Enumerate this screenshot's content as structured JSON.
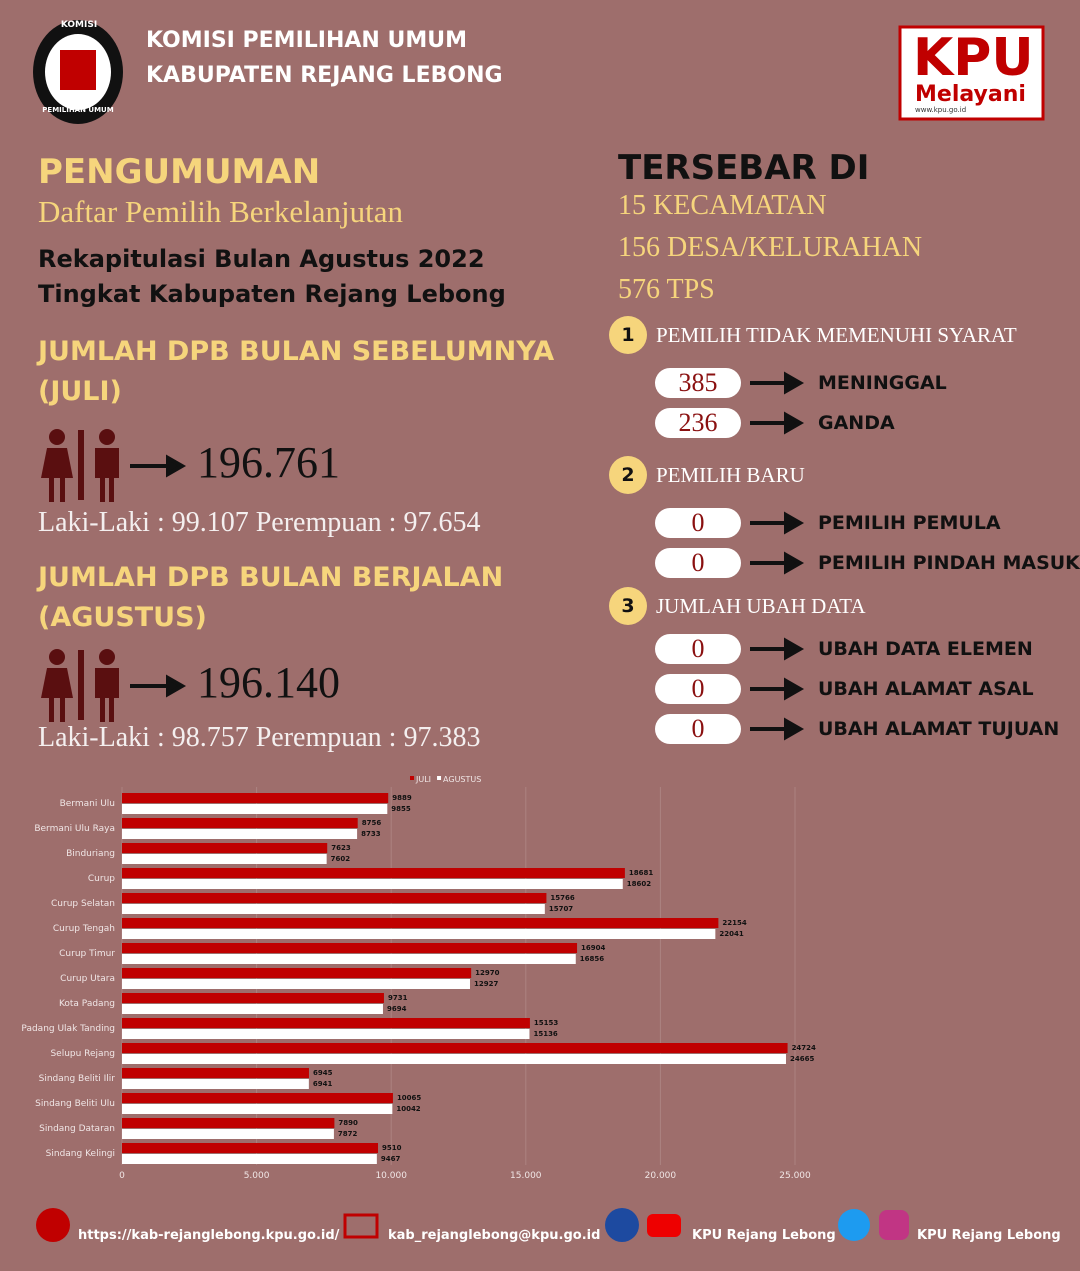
{
  "header": {
    "org_line1": "KOMISI PEMILIHAN UMUM",
    "org_line2": "KABUPATEN REJANG LEBONG",
    "logo_top": "KOMISI",
    "logo_bottom": "PEMILIHAN UMUM",
    "badge_title": "KPU",
    "badge_subtitle": "Melayani",
    "badge_url": "www.kpu.go.id"
  },
  "announcement": {
    "title": "PENGUMUMAN",
    "subtitle": "Daftar Pemilih Berkelanjutan",
    "description": "Rekapitulasi Bulan Agustus 2022 Tingkat Kabupaten Rejang Lebong"
  },
  "previous": {
    "heading": "JUMLAH DPB BULAN SEBELUMNYA (JULI)",
    "total": "196.761",
    "breakdown": "Laki-Laki : 99.107 Perempuan : 97.654"
  },
  "current": {
    "heading": "JUMLAH DPB BULAN BERJALAN (AGUSTUS)",
    "total": "196.140",
    "breakdown": "Laki-Laki : 98.757 Perempuan : 97.383"
  },
  "spread": {
    "heading": "TERSEBAR DI",
    "items": [
      "15 KECAMATAN",
      "156 DESA/KELURAHAN",
      "576 TPS"
    ]
  },
  "sections": [
    {
      "number": 1,
      "title": "PEMILIH TIDAK MEMENUHI SYARAT",
      "items": [
        {
          "value": 385,
          "label": "MENINGGAL"
        },
        {
          "value": 236,
          "label": "GANDA"
        }
      ]
    },
    {
      "number": 2,
      "title": "PEMILIH BARU",
      "items": [
        {
          "value": 0,
          "label": "PEMILIH PEMULA"
        },
        {
          "value": 0,
          "label": "PEMILIH PINDAH MASUK"
        }
      ]
    },
    {
      "number": 3,
      "title": "JUMLAH UBAH DATA",
      "items": [
        {
          "value": 0,
          "label": "UBAH DATA ELEMEN"
        },
        {
          "value": 0,
          "label": "UBAH ALAMAT ASAL"
        },
        {
          "value": 0,
          "label": "UBAH ALAMAT TUJUAN"
        }
      ]
    }
  ],
  "chart_data": {
    "type": "hbar",
    "categories": [
      "Bermani Ulu",
      "Bermani Ulu Raya",
      "Binduriang",
      "Curup",
      "Curup Selatan",
      "Curup Tengah",
      "Curup Timur",
      "Curup Utara",
      "Kota Padang",
      "Padang Ulak Tanding",
      "Selupu Rejang",
      "Sindang Beliti Ilir",
      "Sindang Beliti Ulu",
      "Sindang Dataran",
      "Sindang Kelingi"
    ],
    "series": [
      {
        "name": "JULI",
        "color": "#c00000",
        "values": [
          9889,
          8756,
          7623,
          18681,
          15766,
          22154,
          16904,
          12970,
          9731,
          15153,
          24724,
          6945,
          10065,
          7890,
          9510
        ]
      },
      {
        "name": "AGUSTUS",
        "color": "#ffffff",
        "values": [
          9855,
          8733,
          7602,
          18602,
          15707,
          22041,
          16856,
          12927,
          9694,
          15136,
          24665,
          6941,
          10042,
          7872,
          9467
        ]
      }
    ],
    "xlim": [
      0,
      25000
    ],
    "xticks": [
      0,
      {
        "value": 5000,
        "label": "5.000"
      },
      {
        "value": 10000,
        "label": "10.000"
      },
      {
        "value": 15000,
        "label": "15.000"
      },
      {
        "value": 20000,
        "label": "20.000"
      },
      {
        "value": 25000,
        "label": "25.000"
      }
    ],
    "grid": true
  },
  "footer": {
    "website": "https://kab-rejanglebong.kpu.go.id/",
    "email": "kab_rejanglebong@kpu.go.id",
    "facebook_youtube": "KPU Rejang Lebong",
    "twitter_instagram": "KPU Rejang Lebong"
  }
}
